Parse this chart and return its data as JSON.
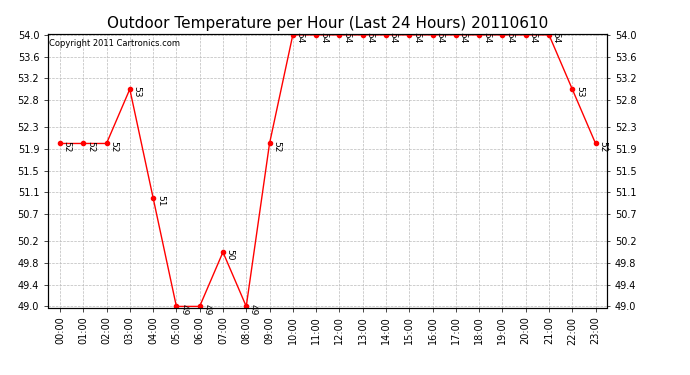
{
  "title": "Outdoor Temperature per Hour (Last 24 Hours) 20110610",
  "copyright": "Copyright 2011 Cartronics.com",
  "hours": [
    "00:00",
    "01:00",
    "02:00",
    "03:00",
    "04:00",
    "05:00",
    "06:00",
    "07:00",
    "08:00",
    "09:00",
    "10:00",
    "11:00",
    "12:00",
    "13:00",
    "14:00",
    "15:00",
    "16:00",
    "17:00",
    "18:00",
    "19:00",
    "20:00",
    "21:00",
    "22:00",
    "23:00"
  ],
  "temps": [
    52,
    52,
    52,
    53,
    51,
    49,
    49,
    50,
    49,
    52,
    54,
    54,
    54,
    54,
    54,
    54,
    54,
    54,
    54,
    54,
    54,
    54,
    53,
    52
  ],
  "ylim_min": 49.0,
  "ylim_max": 54.0,
  "yticks": [
    49.0,
    49.4,
    49.8,
    50.2,
    50.7,
    51.1,
    51.5,
    51.9,
    52.3,
    52.8,
    53.2,
    53.6,
    54.0
  ],
  "line_color": "red",
  "marker": "o",
  "marker_size": 3,
  "grid_color": "#bbbbbb",
  "background_color": "white",
  "title_fontsize": 11,
  "label_fontsize": 7,
  "annot_fontsize": 6.5,
  "copyright_fontsize": 6
}
